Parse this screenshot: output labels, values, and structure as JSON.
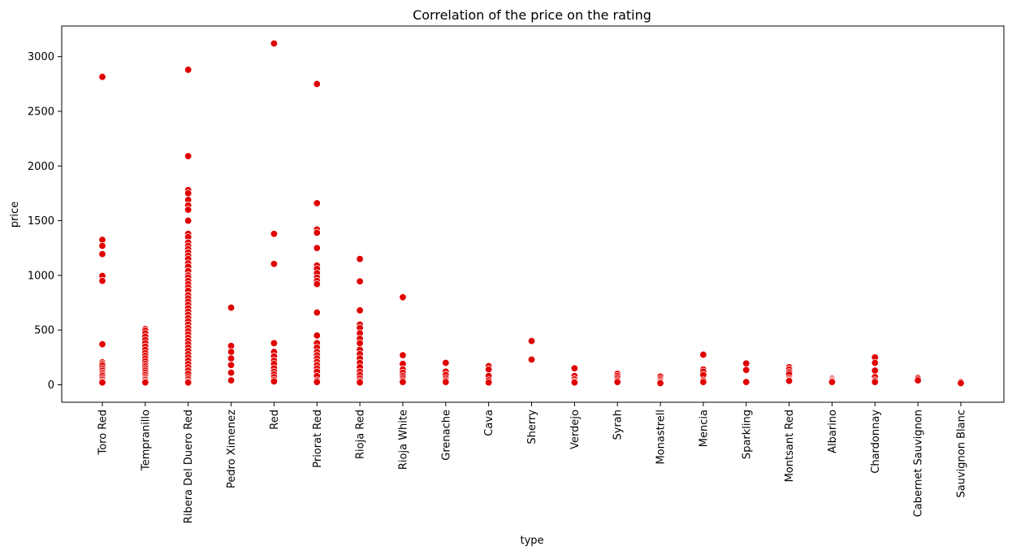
{
  "chart_data": {
    "type": "scatter",
    "title": "Correlation of the price on the rating",
    "xlabel": "type",
    "ylabel": "price",
    "ylim": [
      -160,
      3280
    ],
    "yticks": [
      0,
      500,
      1000,
      1500,
      2000,
      2500,
      3000
    ],
    "categories": [
      "Toro Red",
      "Tempranillo",
      "Ribera Del Duero Red",
      "Pedro Ximenez",
      "Red",
      "Priorat Red",
      "Rioja Red",
      "Rioja White",
      "Grenache",
      "Cava",
      "Sherry",
      "Verdejo",
      "Syrah",
      "Monastrell",
      "Mencia",
      "Sparkling",
      "Montsant Red",
      "Albarino",
      "Chardonnay",
      "Cabernet Sauvignon",
      "Sauvignon Blanc"
    ],
    "point_color": "#e00000",
    "grid": false,
    "points": [
      {
        "category": "Toro Red",
        "prices": [
          2815,
          1325,
          1270,
          1195,
          995,
          950,
          370,
          205,
          190,
          175,
          150,
          130,
          110,
          95,
          80,
          60,
          45,
          30,
          20
        ]
      },
      {
        "category": "Tempranillo",
        "prices": [
          510,
          495,
          470,
          440,
          410,
          380,
          350,
          320,
          290,
          265,
          240,
          215,
          190,
          170,
          150,
          130,
          110,
          90,
          70,
          55,
          45,
          30,
          20
        ]
      },
      {
        "category": "Ribera Del Duero Red",
        "prices": [
          2880,
          2090,
          1780,
          1750,
          1690,
          1640,
          1600,
          1500,
          1380,
          1350,
          1300,
          1270,
          1240,
          1210,
          1180,
          1150,
          1110,
          1080,
          1040,
          1000,
          980,
          950,
          920,
          890,
          860,
          820,
          790,
          760,
          730,
          700,
          670,
          640,
          610,
          580,
          550,
          520,
          490,
          460,
          430,
          400,
          370,
          340,
          310,
          280,
          250,
          220,
          190,
          160,
          130,
          100,
          70,
          50,
          30,
          20
        ]
      },
      {
        "category": "Pedro Ximenez",
        "prices": [
          705,
          355,
          300,
          240,
          180,
          110,
          40
        ]
      },
      {
        "category": "Red",
        "prices": [
          3120,
          1380,
          1105,
          380,
          300,
          260,
          220,
          190,
          150,
          120,
          95,
          70,
          45,
          30
        ]
      },
      {
        "category": "Priorat Red",
        "prices": [
          2750,
          1660,
          1420,
          1390,
          1250,
          1090,
          1060,
          1020,
          980,
          950,
          920,
          660,
          450,
          380,
          340,
          300,
          270,
          240,
          210,
          180,
          150,
          120,
          80,
          40,
          25
        ]
      },
      {
        "category": "Rioja Red",
        "prices": [
          1150,
          945,
          680,
          550,
          520,
          470,
          420,
          380,
          320,
          280,
          240,
          200,
          160,
          120,
          90,
          60,
          35,
          20
        ]
      },
      {
        "category": "Rioja White",
        "prices": [
          800,
          270,
          190,
          140,
          110,
          80,
          60,
          40,
          25
        ]
      },
      {
        "category": "Grenache",
        "prices": [
          200,
          120,
          90,
          60,
          40,
          25
        ]
      },
      {
        "category": "Cava",
        "prices": [
          170,
          140,
          80,
          40,
          20
        ]
      },
      {
        "category": "Sherry",
        "prices": [
          400,
          230
        ]
      },
      {
        "category": "Verdejo",
        "prices": [
          150,
          80,
          50,
          30,
          20
        ]
      },
      {
        "category": "Syrah",
        "prices": [
          100,
          80,
          60,
          40,
          25
        ]
      },
      {
        "category": "Monastrell",
        "prices": [
          75,
          55,
          40,
          25,
          15
        ]
      },
      {
        "category": "Mencia",
        "prices": [
          275,
          140,
          120,
          90,
          40,
          25
        ]
      },
      {
        "category": "Sparkling",
        "prices": [
          195,
          135,
          25
        ]
      },
      {
        "category": "Montsant Red",
        "prices": [
          160,
          140,
          115,
          95,
          60,
          45,
          35
        ]
      },
      {
        "category": "Albarino",
        "prices": [
          55,
          45,
          35,
          25
        ]
      },
      {
        "category": "Chardonnay",
        "prices": [
          250,
          200,
          130,
          70,
          40,
          25
        ]
      },
      {
        "category": "Cabernet Sauvignon",
        "prices": [
          65,
          55,
          40
        ]
      },
      {
        "category": "Sauvignon Blanc",
        "prices": [
          25,
          15
        ]
      }
    ]
  }
}
